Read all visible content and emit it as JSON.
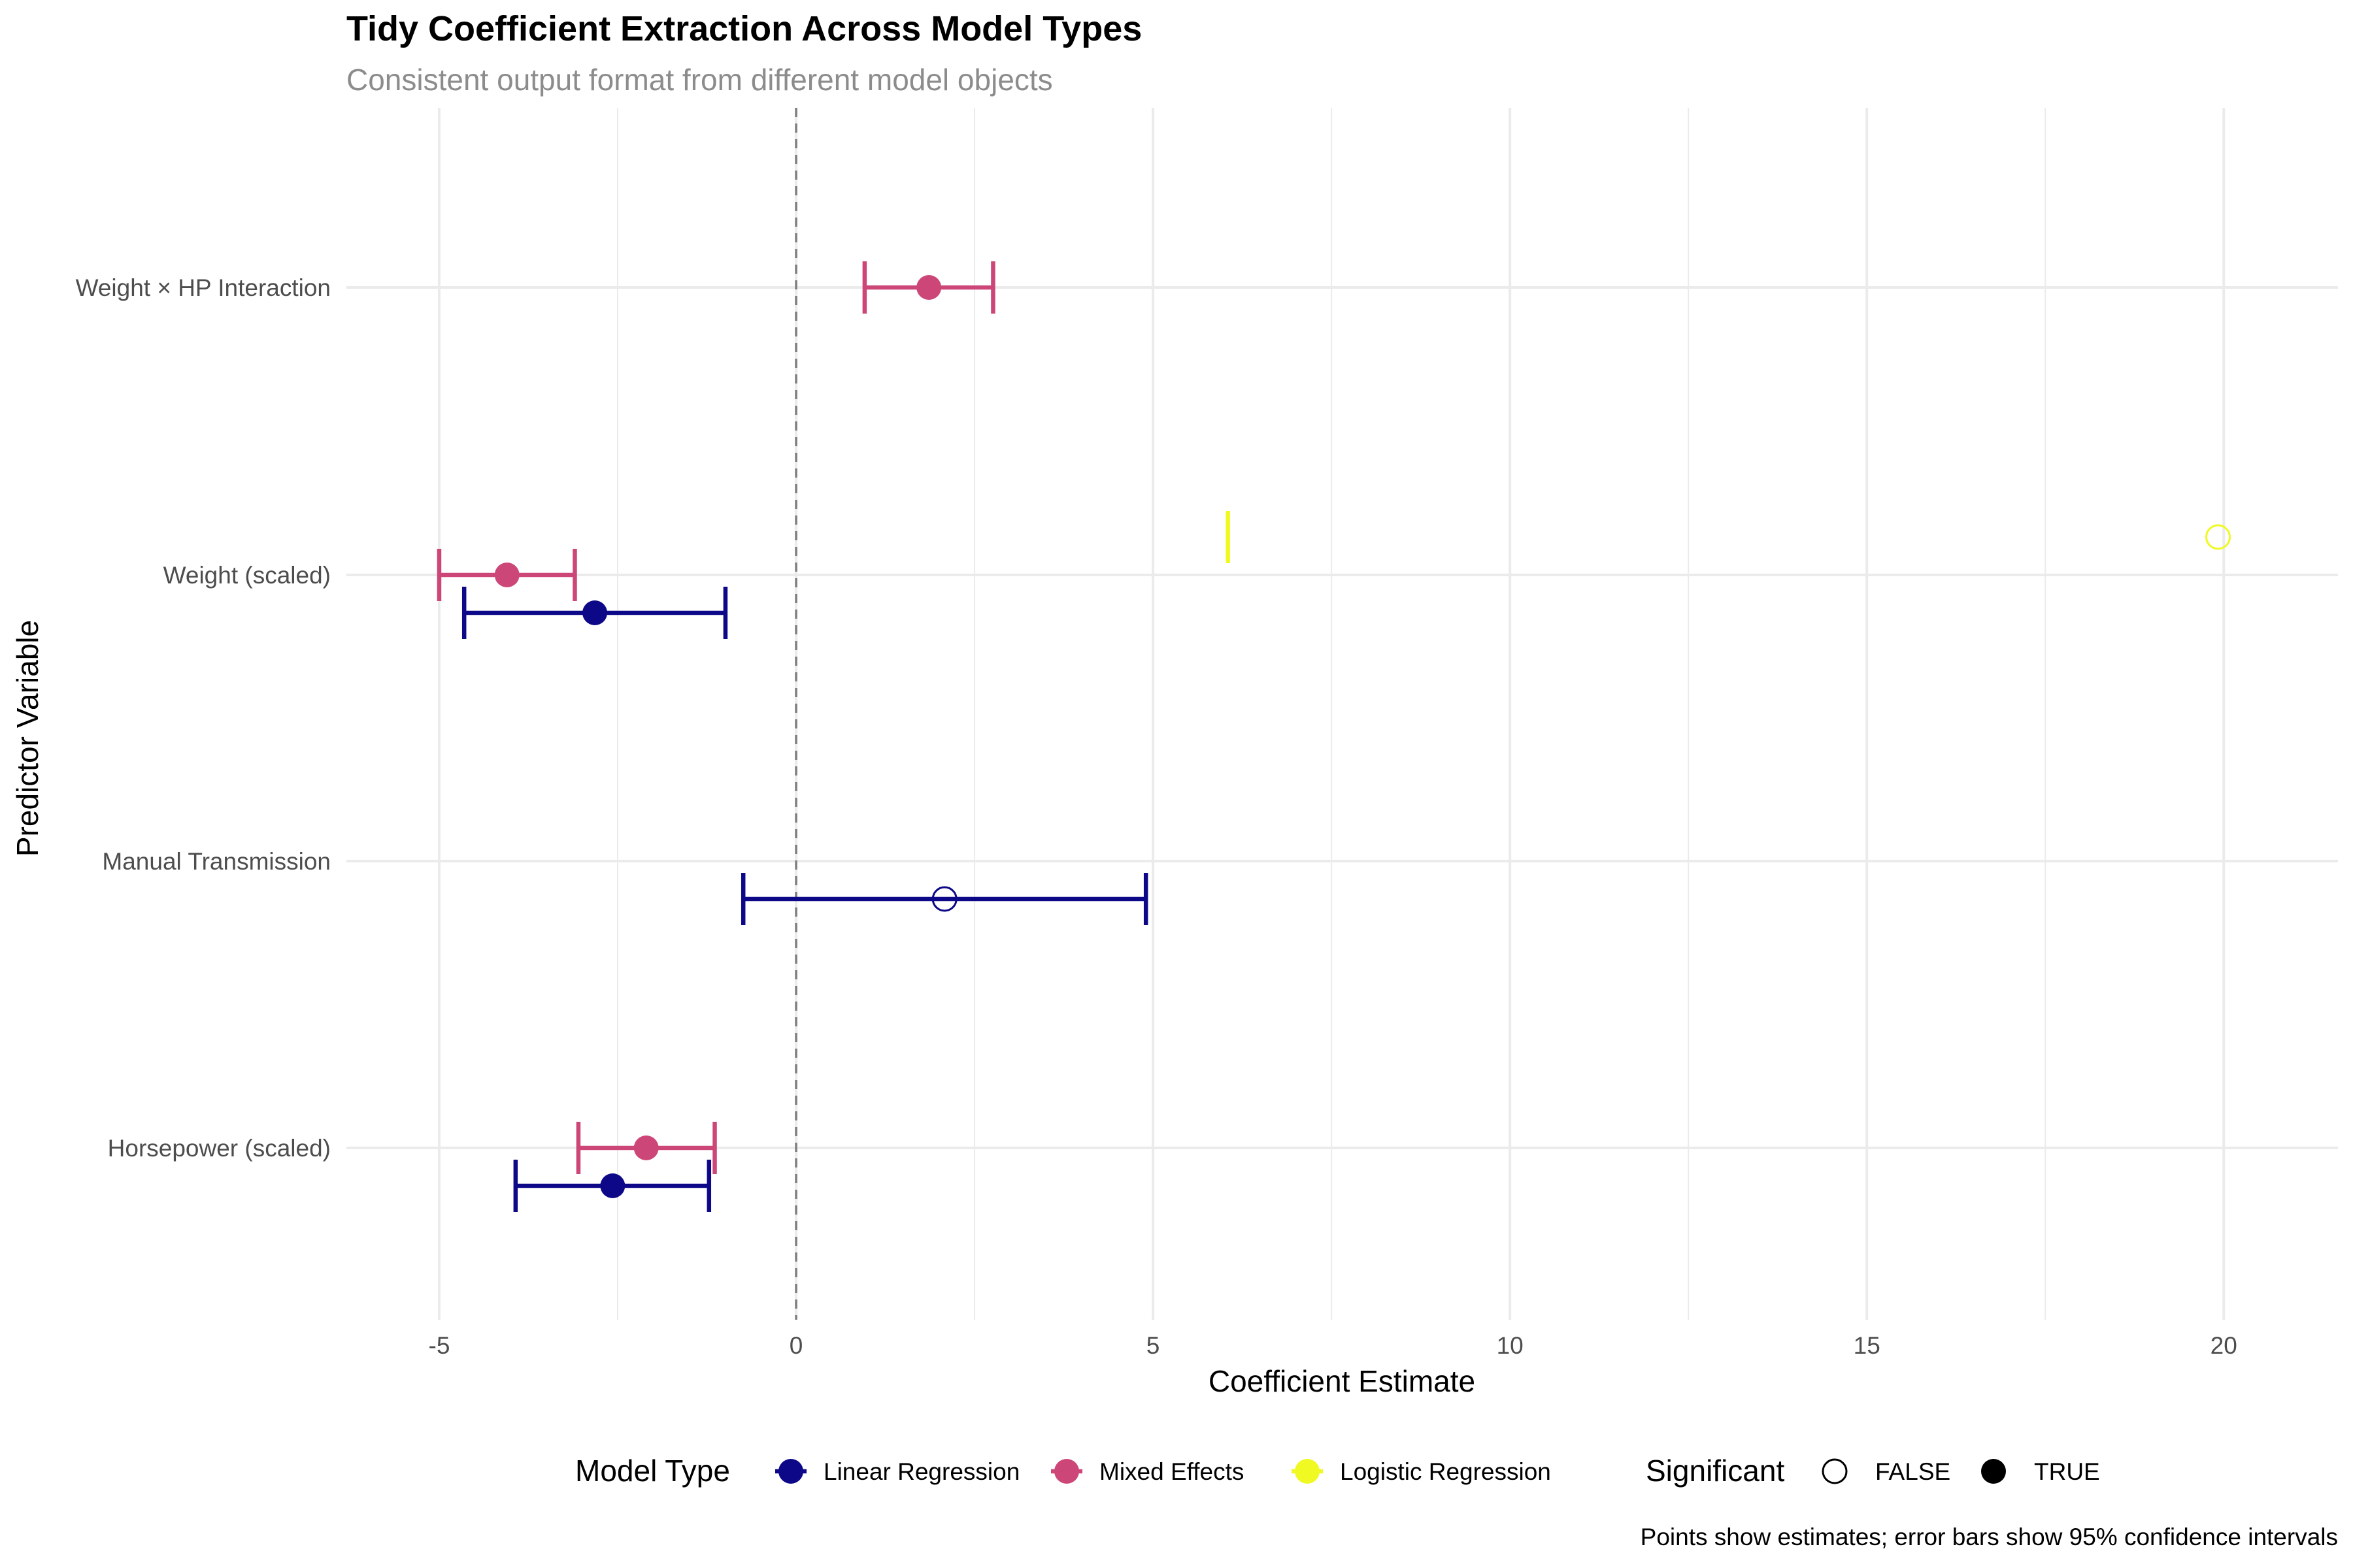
{
  "chart_data": {
    "type": "scatter",
    "title": "Tidy Coefficient Extraction Across Model Types",
    "subtitle": "Consistent output format from different model objects",
    "xlabel": "Coefficient Estimate",
    "ylabel": "Predictor Variable",
    "caption": "Points show estimates; error bars show 95% confidence intervals",
    "xlim": [
      -6.3,
      21.6
    ],
    "x_ticks": [
      -5,
      0,
      5,
      10,
      15,
      20
    ],
    "x_tick_labels": [
      "-5",
      "0",
      "5",
      "10",
      "15",
      "20"
    ],
    "categories": [
      "Weight × HP Interaction",
      "Weight (scaled)",
      "Manual Transmission",
      "Horsepower (scaled)"
    ],
    "reference_line": {
      "x": 0,
      "style": "dashed"
    },
    "grid": true,
    "legend_position": "bottom",
    "series": [
      {
        "name": "Linear Regression",
        "color": "#0d0887",
        "points": [
          {
            "category": "Weight (scaled)",
            "estimate": -2.82,
            "ci_low": -4.65,
            "ci_high": -0.99,
            "significant": true
          },
          {
            "category": "Manual Transmission",
            "estimate": 2.08,
            "ci_low": -0.74,
            "ci_high": 4.9,
            "significant": false
          },
          {
            "category": "Horsepower (scaled)",
            "estimate": -2.57,
            "ci_low": -3.93,
            "ci_high": -1.22,
            "significant": true
          }
        ]
      },
      {
        "name": "Mixed Effects",
        "color": "#cc4778",
        "points": [
          {
            "category": "Weight × HP Interaction",
            "estimate": 1.86,
            "ci_low": 0.96,
            "ci_high": 2.76,
            "significant": true
          },
          {
            "category": "Weight (scaled)",
            "estimate": -4.05,
            "ci_low": -5.0,
            "ci_high": -3.1,
            "significant": true
          },
          {
            "category": "Horsepower (scaled)",
            "estimate": -2.1,
            "ci_low": -3.05,
            "ci_high": -1.14,
            "significant": true
          }
        ]
      },
      {
        "name": "Logistic Regression",
        "color": "#f0f921",
        "points": [
          {
            "category": "Weight (scaled)",
            "estimate": 19.92,
            "ci_low": 6.05,
            "ci_high": 6.05,
            "significant": false
          }
        ]
      }
    ],
    "legend": {
      "model_type_title": "Model Type",
      "significant_title": "Significant",
      "significant_values": [
        "FALSE",
        "TRUE"
      ]
    }
  }
}
